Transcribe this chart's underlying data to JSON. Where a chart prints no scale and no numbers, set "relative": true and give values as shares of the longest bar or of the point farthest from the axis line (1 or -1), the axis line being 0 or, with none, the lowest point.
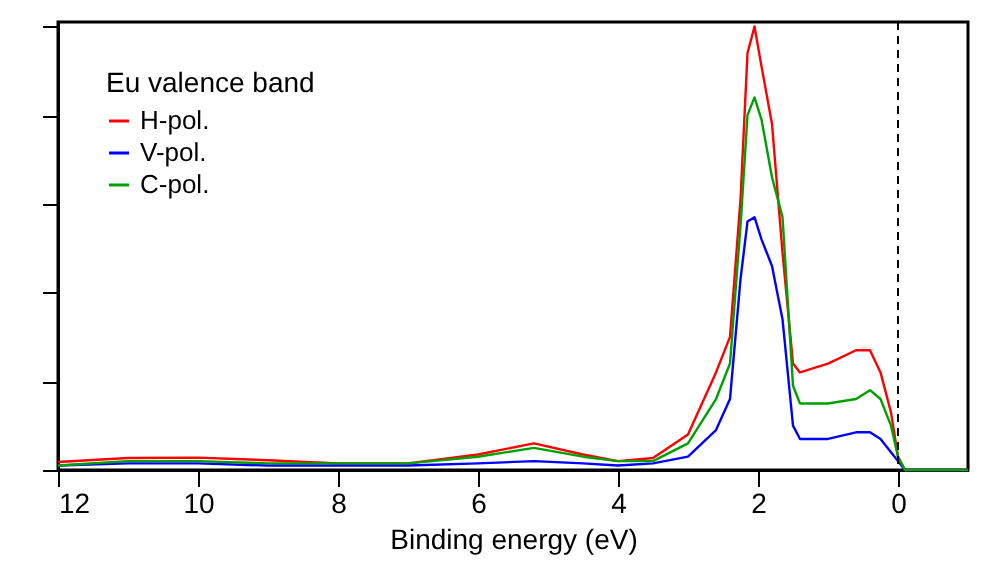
{
  "chart_data": {
    "type": "line",
    "relative": true,
    "xlabel": "Binding energy (eV)",
    "legend_title": "Eu valence band",
    "legend": "top left",
    "grid": false,
    "line_style": "solid",
    "marker": "none",
    "x": [
      12,
      11,
      10,
      9,
      8,
      7,
      6,
      5.2,
      4.5,
      4.0,
      3.5,
      3.0,
      2.6,
      2.4,
      2.25,
      2.15,
      2.05,
      1.95,
      1.8,
      1.65,
      1.5,
      1.4,
      1.0,
      0.6,
      0.4,
      0.25,
      0.1,
      0,
      -0.1,
      -1
    ],
    "xlim": [
      12,
      -1
    ],
    "xticks": [
      12,
      10,
      8,
      6,
      4,
      2,
      0
    ],
    "series": [
      {
        "name": "H-pol.",
        "color": "#ff0000",
        "values": [
          0.018,
          0.027,
          0.028,
          0.022,
          0.015,
          0.015,
          0.035,
          0.06,
          0.035,
          0.02,
          0.027,
          0.08,
          0.22,
          0.3,
          0.61,
          0.94,
          1,
          0.91,
          0.78,
          0.49,
          0.24,
          0.22,
          0.24,
          0.27,
          0.27,
          0.22,
          0.13,
          0.03,
          0,
          0
        ]
      },
      {
        "name": "V-pol.",
        "color": "#0000ff",
        "values": [
          0.01,
          0.015,
          0.015,
          0.01,
          0.01,
          0.01,
          0.015,
          0.02,
          0.015,
          0.01,
          0.015,
          0.03,
          0.09,
          0.16,
          0.43,
          0.56,
          0.57,
          0.52,
          0.46,
          0.34,
          0.1,
          0.07,
          0.07,
          0.085,
          0.085,
          0.07,
          0.04,
          0.02,
          0,
          0
        ]
      },
      {
        "name": "C-pol.",
        "color": "#00a000",
        "values": [
          0.01,
          0.02,
          0.02,
          0.015,
          0.015,
          0.015,
          0.03,
          0.05,
          0.03,
          0.02,
          0.02,
          0.06,
          0.16,
          0.24,
          0.55,
          0.8,
          0.84,
          0.79,
          0.66,
          0.57,
          0.19,
          0.15,
          0.15,
          0.16,
          0.18,
          0.16,
          0.1,
          0.03,
          0,
          0
        ]
      }
    ],
    "ref_lines": [
      {
        "axis": "x",
        "value": 0,
        "line_style": "dashed",
        "color": "#000000"
      }
    ]
  }
}
